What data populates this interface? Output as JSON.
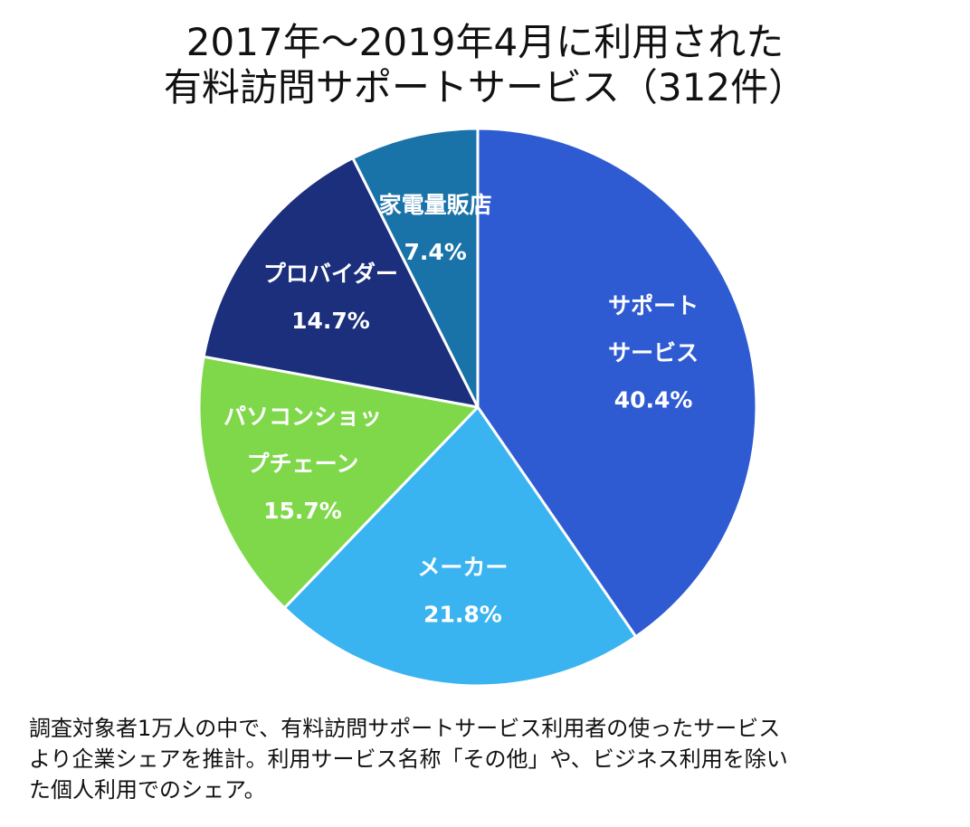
{
  "title": {
    "line1": "2017年～2019年4月に利用された",
    "line2": "有料訪問サポートサービス（312件）"
  },
  "chart_data": {
    "type": "pie",
    "title": "2017年～2019年4月に利用された 有料訪問サポートサービス（312件）",
    "start": "12-o'clock",
    "direction": "clockwise",
    "slices": [
      {
        "lines": [
          "サポート",
          "サービス"
        ],
        "value": 40.4,
        "value_label": "40.4%",
        "color": "#2f5bd2"
      },
      {
        "lines": [
          "メーカー"
        ],
        "value": 21.8,
        "value_label": "21.8%",
        "color": "#3ab4f0"
      },
      {
        "lines": [
          "パソコンショッ",
          "プチェーン"
        ],
        "value": 15.7,
        "value_label": "15.7%",
        "color": "#7fd84a"
      },
      {
        "lines": [
          "プロバイダー"
        ],
        "value": 14.7,
        "value_label": "14.7%",
        "color": "#1c2f7c"
      },
      {
        "lines": [
          "家電量販店"
        ],
        "value": 7.4,
        "value_label": "7.4%",
        "color": "#1a73a8"
      }
    ]
  },
  "note": {
    "line1": "調査対象者1万人の中で、有料訪問サポートサービス利用者の使ったサービス",
    "line2": "より企業シェアを推計。利用サービス名称「その他」や、ビジネス利用を除い",
    "line3": "た個人利用でのシェア。"
  }
}
